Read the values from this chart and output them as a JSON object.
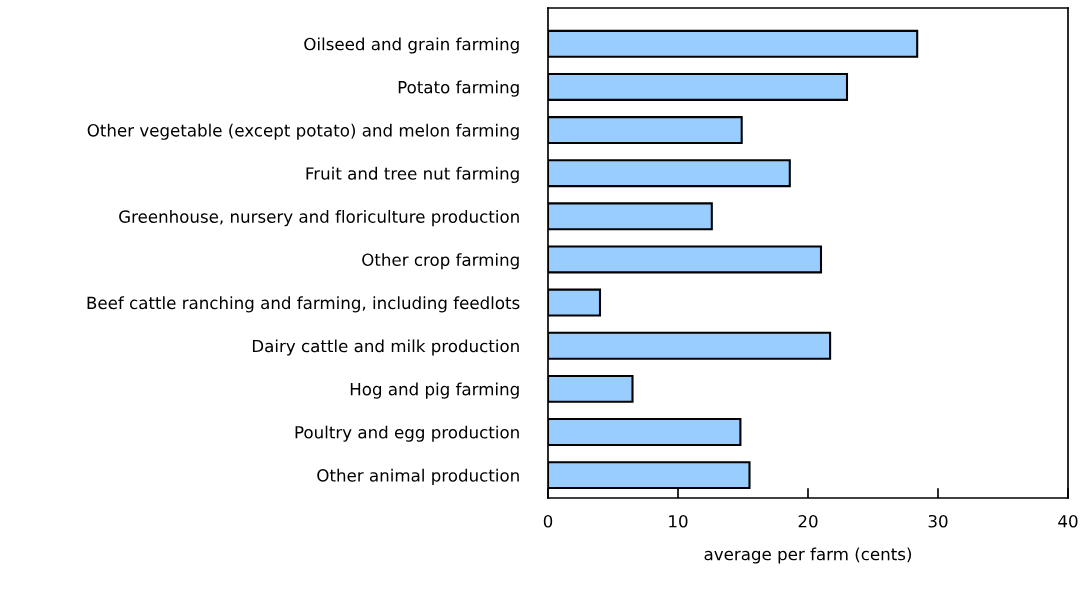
{
  "chart_data": {
    "type": "bar",
    "orientation": "horizontal",
    "xlabel": "average per farm (cents)",
    "categories": [
      "Oilseed and grain farming",
      "Potato farming",
      "Other vegetable (except potato) and melon farming",
      "Fruit and tree nut farming",
      "Greenhouse, nursery and floriculture production",
      "Other crop farming",
      "Beef cattle ranching and farming, including feedlots",
      "Dairy cattle and milk production",
      "Hog and pig farming",
      "Poultry and egg production",
      "Other animal production"
    ],
    "values": [
      28.4,
      23.0,
      14.9,
      18.6,
      12.6,
      21.0,
      4.0,
      21.7,
      6.5,
      14.8,
      15.5
    ],
    "color": "#99ccff",
    "xlim": [
      0,
      40
    ],
    "xticks": [
      0,
      10,
      20,
      30,
      40
    ],
    "grid": false,
    "legend": false
  }
}
